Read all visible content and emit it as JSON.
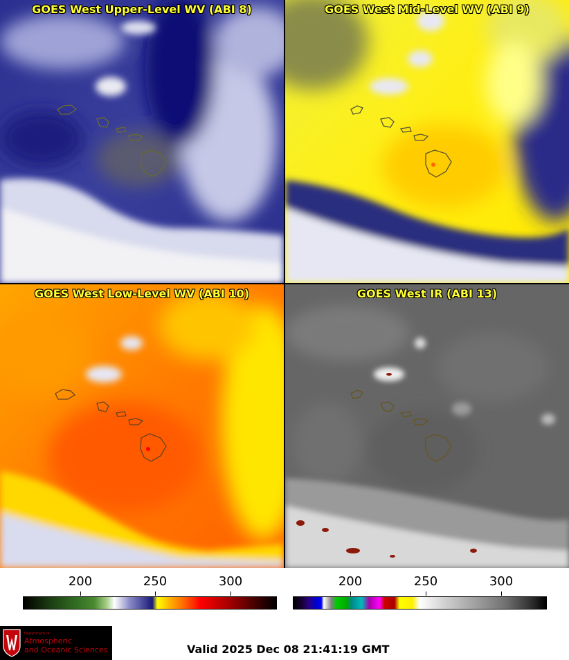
{
  "panels": [
    {
      "title": "GOES West Upper-Level WV (ABI 8)",
      "colors": {
        "base": "#3a3f9c",
        "dark": "#0d1175",
        "light": "#b5b8de",
        "cloud": "#f2f2f5"
      }
    },
    {
      "title": "GOES West Mid-Level WV (ABI 9)",
      "colors": {
        "base": "#ffee11",
        "dark": "#1a1a80",
        "light": "#fff98a",
        "cloud": "#f2f2f5"
      }
    },
    {
      "title": "GOES West Low-Level WV (ABI 10)",
      "colors": {
        "base": "#ff8a00",
        "dark": "#ff4a00",
        "light": "#ffe400",
        "cloud": "#f2f2f5"
      }
    },
    {
      "title": "GOES West IR (ABI 13)",
      "colors": {
        "base": "#6a6a6a",
        "dark": "#555555",
        "light": "#9a9a9a",
        "cloud": "#f4f4f4"
      }
    }
  ],
  "colorbars": [
    {
      "ticks": [
        "200",
        "250",
        "300"
      ]
    },
    {
      "ticks": [
        "200",
        "250",
        "300"
      ]
    }
  ],
  "logo": {
    "dept": "Department of",
    "line1": "Atmospheric",
    "line2": "and Oceanic Sciences"
  },
  "valid_time": "Valid 2025 Dec 08 21:41:19 GMT"
}
